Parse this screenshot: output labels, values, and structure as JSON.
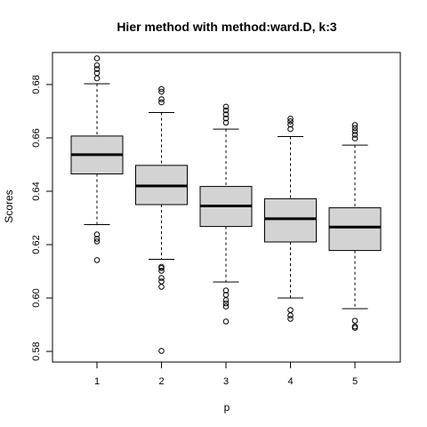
{
  "chart_data": {
    "type": "boxplot",
    "title": "Hier method with method:ward.D, k:3",
    "xlabel": "p",
    "ylabel": "Scores",
    "categories": [
      "1",
      "2",
      "3",
      "4",
      "5"
    ],
    "ylim": [
      0.576,
      0.692
    ],
    "yticks": [
      0.58,
      0.6,
      0.62,
      0.64,
      0.66,
      0.68
    ],
    "ytick_labels": [
      "0.58",
      "0.60",
      "0.62",
      "0.64",
      "0.66",
      "0.68"
    ],
    "grid": false,
    "box_fill": "#d3d3d3",
    "boxes": [
      {
        "label": "1",
        "whisker_low": 0.6275,
        "q1": 0.6465,
        "median": 0.6537,
        "q3": 0.6607,
        "whisker_high": 0.6803,
        "outliers": [
          0.6142,
          0.6212,
          0.6222,
          0.6238,
          0.6823,
          0.6843,
          0.6858,
          0.6872,
          0.6898
        ]
      },
      {
        "label": "2",
        "whisker_low": 0.6145,
        "q1": 0.635,
        "median": 0.642,
        "q3": 0.6497,
        "whisker_high": 0.6695,
        "outliers": [
          0.5802,
          0.6042,
          0.6062,
          0.6075,
          0.6102,
          0.6112,
          0.6117,
          0.6733,
          0.6745,
          0.6773,
          0.6783
        ]
      },
      {
        "label": "3",
        "whisker_low": 0.606,
        "q1": 0.6268,
        "median": 0.6345,
        "q3": 0.6418,
        "whisker_high": 0.6633,
        "outliers": [
          0.5912,
          0.5968,
          0.598,
          0.5992,
          0.6012,
          0.6028,
          0.6657,
          0.6673,
          0.6688,
          0.6703,
          0.6717
        ]
      },
      {
        "label": "4",
        "whisker_low": 0.6,
        "q1": 0.621,
        "median": 0.6297,
        "q3": 0.6372,
        "whisker_high": 0.6605,
        "outliers": [
          0.5922,
          0.5935,
          0.5955,
          0.6633,
          0.665,
          0.6662,
          0.6672
        ]
      },
      {
        "label": "5",
        "whisker_low": 0.596,
        "q1": 0.6178,
        "median": 0.6266,
        "q3": 0.6338,
        "whisker_high": 0.6573,
        "outliers": [
          0.5888,
          0.5893,
          0.5915,
          0.6598,
          0.6612,
          0.6625,
          0.6637,
          0.6648
        ]
      }
    ]
  }
}
